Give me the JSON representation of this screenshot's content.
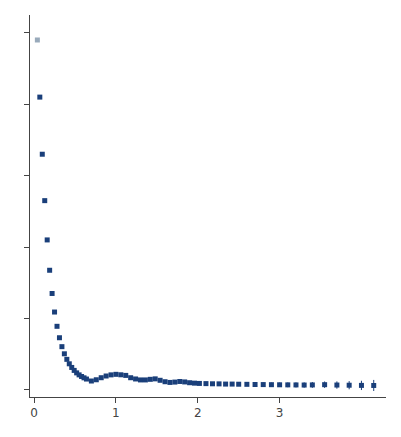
{
  "chart_data": {
    "type": "scatter",
    "x": [
      0.04,
      0.07,
      0.1,
      0.13,
      0.16,
      0.19,
      0.22,
      0.25,
      0.28,
      0.31,
      0.34,
      0.37,
      0.4,
      0.43,
      0.46,
      0.49,
      0.52,
      0.55,
      0.58,
      0.61,
      0.64,
      0.7,
      0.76,
      0.82,
      0.88,
      0.94,
      1.0,
      1.06,
      1.12,
      1.18,
      1.24,
      1.3,
      1.36,
      1.42,
      1.48,
      1.54,
      1.6,
      1.66,
      1.72,
      1.78,
      1.84,
      1.9,
      1.96,
      2.02,
      2.1,
      2.18,
      2.26,
      2.34,
      2.42,
      2.5,
      2.6,
      2.7,
      2.8,
      2.9,
      3.0,
      3.1,
      3.2,
      3.3,
      3.4,
      3.55,
      3.7,
      3.85,
      4.0,
      4.15
    ],
    "values": [
      9800,
      8200,
      6600,
      5300,
      4200,
      3350,
      2700,
      2180,
      1780,
      1460,
      1210,
      1010,
      855,
      730,
      628,
      545,
      476,
      420,
      375,
      337,
      303,
      248,
      283,
      340,
      388,
      420,
      435,
      422,
      405,
      340,
      305,
      278,
      278,
      295,
      308,
      268,
      228,
      208,
      218,
      235,
      222,
      200,
      188,
      180,
      175,
      170,
      168,
      162,
      162,
      158,
      155,
      150,
      148,
      145,
      142,
      140,
      138,
      135,
      138,
      145,
      135,
      130,
      125,
      123
    ],
    "errors": [
      0,
      0,
      0,
      0,
      0,
      0,
      0,
      0,
      0,
      0,
      0,
      0,
      0,
      0,
      0,
      0,
      0,
      0,
      30,
      30,
      30,
      25,
      25,
      25,
      25,
      25,
      25,
      25,
      25,
      25,
      25,
      25,
      25,
      25,
      25,
      25,
      25,
      25,
      28,
      28,
      28,
      28,
      28,
      32,
      32,
      35,
      35,
      38,
      38,
      42,
      46,
      50,
      54,
      58,
      62,
      66,
      70,
      74,
      82,
      90,
      102,
      115,
      130,
      155
    ],
    "colors": [
      "#99aabb",
      "#1a3f7a",
      "#1a3f7a",
      "#1a3f7a",
      "#1a3f7a",
      "#1a3f7a",
      "#1a3f7a",
      "#1a3f7a",
      "#1a3f7a",
      "#1a3f7a",
      "#1a3f7a",
      "#1a3f7a",
      "#1a3f7a",
      "#1a3f7a",
      "#1a3f7a",
      "#1a3f7a",
      "#1a3f7a",
      "#1a3f7a",
      "#1a3f7a",
      "#1a3f7a",
      "#1a3f7a",
      "#1a3f7a",
      "#1a3f7a",
      "#1a3f7a",
      "#1a3f7a",
      "#1a3f7a",
      "#1a3f7a",
      "#1a3f7a",
      "#1a3f7a",
      "#1a3f7a",
      "#1a3f7a",
      "#1a3f7a",
      "#1a3f7a",
      "#1a3f7a",
      "#1a3f7a",
      "#1a3f7a",
      "#1a3f7a",
      "#1a3f7a",
      "#1a3f7a",
      "#1a3f7a",
      "#1a3f7a",
      "#1a3f7a",
      "#1a3f7a",
      "#1a3f7a",
      "#1a3f7a",
      "#1a3f7a",
      "#1a3f7a",
      "#1a3f7a",
      "#1a3f7a",
      "#1a3f7a",
      "#1a3f7a",
      "#1a3f7a",
      "#1a3f7a",
      "#1a3f7a",
      "#1a3f7a",
      "#1a3f7a",
      "#1a3f7a",
      "#1a3f7a",
      "#1a3f7a",
      "#1a3f7a",
      "#1a3f7a",
      "#1a3f7a",
      "#1a3f7a",
      "#1a3f7a"
    ],
    "marker": "square",
    "xlim": [
      -0.05,
      4.3
    ],
    "xticks": [
      0,
      1,
      2,
      3
    ],
    "ylim": [
      -200,
      10500
    ],
    "yticks": [
      0,
      2000,
      4000,
      6000,
      8000,
      10000
    ],
    "tick_labels": "x",
    "grid": false
  }
}
